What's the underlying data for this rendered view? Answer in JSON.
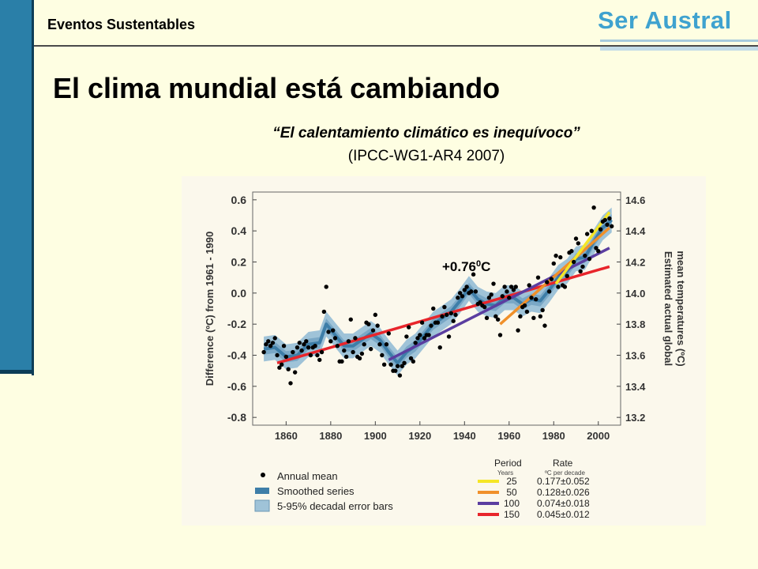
{
  "header": {
    "section_label": "Eventos Sustentables",
    "logo_text": "Ser Austral"
  },
  "slide": {
    "title": "El clima mundial está cambiando",
    "quote": "“El calentamiento climático es inequívoco”",
    "source": "(IPCC-WG1-AR4 2007)"
  },
  "chart_data": {
    "type": "line",
    "y_left_label": "Difference (ºC) from 1961 - 1990",
    "y_right_label": "Estimated actual global mean temperatures (ºC)",
    "x_ticks": [
      "1860",
      "1880",
      "1900",
      "1920",
      "1940",
      "1960",
      "1980",
      "2000"
    ],
    "y_left_ticks": [
      "0.6",
      "0.4",
      "0.2",
      "0.0",
      "-0.2",
      "-0.4",
      "-0.6",
      "-0.8"
    ],
    "y_right_ticks": [
      "14.6",
      "14.4",
      "14.2",
      "14.0",
      "13.8",
      "13.6",
      "13.4",
      "13.2"
    ],
    "xlim": [
      1845,
      2010
    ],
    "ylim": [
      -0.85,
      0.65
    ],
    "annotation": {
      "prefix": "+0.76",
      "superscript": "0",
      "suffix": "C"
    },
    "legend_left": [
      "Annual mean",
      "Smoothed series",
      "5-95% decadal error bars"
    ],
    "legend_right_headers": {
      "period": "Period",
      "period_unit": "Years",
      "rate": "Rate",
      "rate_unit": "ºC  per decade"
    },
    "trends": [
      {
        "period": "25",
        "rate": "0.177±0.052",
        "color": "#f5e626",
        "start": 1981,
        "end": 2005,
        "y0": 0.06,
        "y1": 0.52
      },
      {
        "period": "50",
        "rate": "0.128±0.026",
        "color": "#f0902a",
        "start": 1956,
        "end": 2005,
        "y0": -0.2,
        "y1": 0.42
      },
      {
        "period": "100",
        "rate": "0.074±0.018",
        "color": "#5b3ea0",
        "start": 1906,
        "end": 2005,
        "y0": -0.43,
        "y1": 0.29
      },
      {
        "period": "150",
        "rate": "0.045±0.012",
        "color": "#e8252b",
        "start": 1856,
        "end": 2005,
        "y0": -0.45,
        "y1": 0.17
      }
    ],
    "annual_mean": [
      [
        1850,
        -0.38
      ],
      [
        1851,
        -0.33
      ],
      [
        1852,
        -0.31
      ],
      [
        1853,
        -0.34
      ],
      [
        1854,
        -0.32
      ],
      [
        1855,
        -0.29
      ],
      [
        1856,
        -0.4
      ],
      [
        1857,
        -0.48
      ],
      [
        1858,
        -0.46
      ],
      [
        1859,
        -0.34
      ],
      [
        1860,
        -0.41
      ],
      [
        1861,
        -0.49
      ],
      [
        1862,
        -0.58
      ],
      [
        1863,
        -0.38
      ],
      [
        1864,
        -0.51
      ],
      [
        1865,
        -0.35
      ],
      [
        1866,
        -0.32
      ],
      [
        1867,
        -0.37
      ],
      [
        1868,
        -0.33
      ],
      [
        1869,
        -0.31
      ],
      [
        1870,
        -0.35
      ],
      [
        1871,
        -0.4
      ],
      [
        1872,
        -0.35
      ],
      [
        1873,
        -0.34
      ],
      [
        1874,
        -0.4
      ],
      [
        1875,
        -0.43
      ],
      [
        1876,
        -0.38
      ],
      [
        1877,
        -0.12
      ],
      [
        1878,
        0.04
      ],
      [
        1879,
        -0.25
      ],
      [
        1880,
        -0.31
      ],
      [
        1881,
        -0.24
      ],
      [
        1882,
        -0.29
      ],
      [
        1883,
        -0.34
      ],
      [
        1884,
        -0.44
      ],
      [
        1885,
        -0.44
      ],
      [
        1886,
        -0.37
      ],
      [
        1887,
        -0.41
      ],
      [
        1888,
        -0.31
      ],
      [
        1889,
        -0.17
      ],
      [
        1890,
        -0.38
      ],
      [
        1891,
        -0.29
      ],
      [
        1892,
        -0.41
      ],
      [
        1893,
        -0.42
      ],
      [
        1894,
        -0.39
      ],
      [
        1895,
        -0.33
      ],
      [
        1896,
        -0.19
      ],
      [
        1897,
        -0.2
      ],
      [
        1898,
        -0.36
      ],
      [
        1899,
        -0.24
      ],
      [
        1900,
        -0.14
      ],
      [
        1901,
        -0.21
      ],
      [
        1902,
        -0.33
      ],
      [
        1903,
        -0.4
      ],
      [
        1904,
        -0.46
      ],
      [
        1905,
        -0.33
      ],
      [
        1906,
        -0.26
      ],
      [
        1907,
        -0.46
      ],
      [
        1908,
        -0.5
      ],
      [
        1909,
        -0.5
      ],
      [
        1910,
        -0.47
      ],
      [
        1911,
        -0.53
      ],
      [
        1912,
        -0.47
      ],
      [
        1913,
        -0.45
      ],
      [
        1914,
        -0.28
      ],
      [
        1915,
        -0.22
      ],
      [
        1916,
        -0.42
      ],
      [
        1917,
        -0.44
      ],
      [
        1918,
        -0.32
      ],
      [
        1919,
        -0.29
      ],
      [
        1920,
        -0.27
      ],
      [
        1921,
        -0.19
      ],
      [
        1922,
        -0.29
      ],
      [
        1923,
        -0.27
      ],
      [
        1924,
        -0.27
      ],
      [
        1925,
        -0.21
      ],
      [
        1926,
        -0.1
      ],
      [
        1927,
        -0.19
      ],
      [
        1928,
        -0.19
      ],
      [
        1929,
        -0.35
      ],
      [
        1930,
        -0.15
      ],
      [
        1931,
        -0.09
      ],
      [
        1932,
        -0.14
      ],
      [
        1933,
        -0.28
      ],
      [
        1934,
        -0.13
      ],
      [
        1935,
        -0.18
      ],
      [
        1936,
        -0.14
      ],
      [
        1937,
        -0.03
      ],
      [
        1938,
        0.0
      ],
      [
        1939,
        -0.02
      ],
      [
        1940,
        0.02
      ],
      [
        1941,
        0.04
      ],
      [
        1942,
        0.0
      ],
      [
        1943,
        0.01
      ],
      [
        1944,
        0.12
      ],
      [
        1945,
        0.01
      ],
      [
        1946,
        -0.07
      ],
      [
        1947,
        -0.06
      ],
      [
        1948,
        -0.08
      ],
      [
        1949,
        -0.09
      ],
      [
        1950,
        -0.16
      ],
      [
        1951,
        -0.03
      ],
      [
        1952,
        -0.01
      ],
      [
        1953,
        0.06
      ],
      [
        1954,
        -0.15
      ],
      [
        1955,
        -0.17
      ],
      [
        1956,
        -0.27
      ],
      [
        1957,
        -0.02
      ],
      [
        1958,
        0.04
      ],
      [
        1959,
        0.01
      ],
      [
        1960,
        -0.03
      ],
      [
        1961,
        0.04
      ],
      [
        1962,
        0.02
      ],
      [
        1963,
        0.04
      ],
      [
        1964,
        -0.24
      ],
      [
        1965,
        -0.15
      ],
      [
        1966,
        -0.09
      ],
      [
        1967,
        -0.08
      ],
      [
        1968,
        -0.12
      ],
      [
        1969,
        0.05
      ],
      [
        1970,
        -0.03
      ],
      [
        1971,
        -0.16
      ],
      [
        1972,
        -0.04
      ],
      [
        1973,
        0.1
      ],
      [
        1974,
        -0.15
      ],
      [
        1975,
        -0.11
      ],
      [
        1976,
        -0.21
      ],
      [
        1977,
        0.07
      ],
      [
        1978,
        0.01
      ],
      [
        1979,
        0.09
      ],
      [
        1980,
        0.19
      ],
      [
        1981,
        0.24
      ],
      [
        1982,
        0.04
      ],
      [
        1983,
        0.23
      ],
      [
        1984,
        0.05
      ],
      [
        1985,
        0.04
      ],
      [
        1986,
        0.11
      ],
      [
        1987,
        0.26
      ],
      [
        1988,
        0.27
      ],
      [
        1989,
        0.2
      ],
      [
        1990,
        0.35
      ],
      [
        1991,
        0.32
      ],
      [
        1992,
        0.14
      ],
      [
        1993,
        0.17
      ],
      [
        1994,
        0.24
      ],
      [
        1995,
        0.38
      ],
      [
        1996,
        0.22
      ],
      [
        1997,
        0.4
      ],
      [
        1998,
        0.55
      ],
      [
        1999,
        0.29
      ],
      [
        2000,
        0.27
      ],
      [
        2001,
        0.41
      ],
      [
        2002,
        0.46
      ],
      [
        2003,
        0.47
      ],
      [
        2004,
        0.44
      ],
      [
        2005,
        0.48
      ],
      [
        2006,
        0.43
      ]
    ],
    "smoothed": [
      [
        1850,
        -0.36
      ],
      [
        1855,
        -0.35
      ],
      [
        1860,
        -0.41
      ],
      [
        1865,
        -0.4
      ],
      [
        1870,
        -0.33
      ],
      [
        1875,
        -0.32
      ],
      [
        1878,
        -0.2
      ],
      [
        1882,
        -0.27
      ],
      [
        1886,
        -0.34
      ],
      [
        1890,
        -0.34
      ],
      [
        1894,
        -0.3
      ],
      [
        1898,
        -0.26
      ],
      [
        1902,
        -0.3
      ],
      [
        1906,
        -0.38
      ],
      [
        1910,
        -0.45
      ],
      [
        1914,
        -0.38
      ],
      [
        1918,
        -0.34
      ],
      [
        1922,
        -0.27
      ],
      [
        1926,
        -0.2
      ],
      [
        1930,
        -0.16
      ],
      [
        1934,
        -0.12
      ],
      [
        1938,
        -0.05
      ],
      [
        1942,
        0.03
      ],
      [
        1946,
        -0.04
      ],
      [
        1950,
        -0.07
      ],
      [
        1954,
        -0.08
      ],
      [
        1958,
        -0.03
      ],
      [
        1962,
        -0.03
      ],
      [
        1966,
        -0.07
      ],
      [
        1970,
        -0.04
      ],
      [
        1974,
        -0.05
      ],
      [
        1978,
        0.02
      ],
      [
        1982,
        0.1
      ],
      [
        1986,
        0.14
      ],
      [
        1990,
        0.22
      ],
      [
        1994,
        0.23
      ],
      [
        1998,
        0.33
      ],
      [
        2002,
        0.42
      ],
      [
        2006,
        0.47
      ]
    ],
    "band_halfwidth": 0.08
  }
}
